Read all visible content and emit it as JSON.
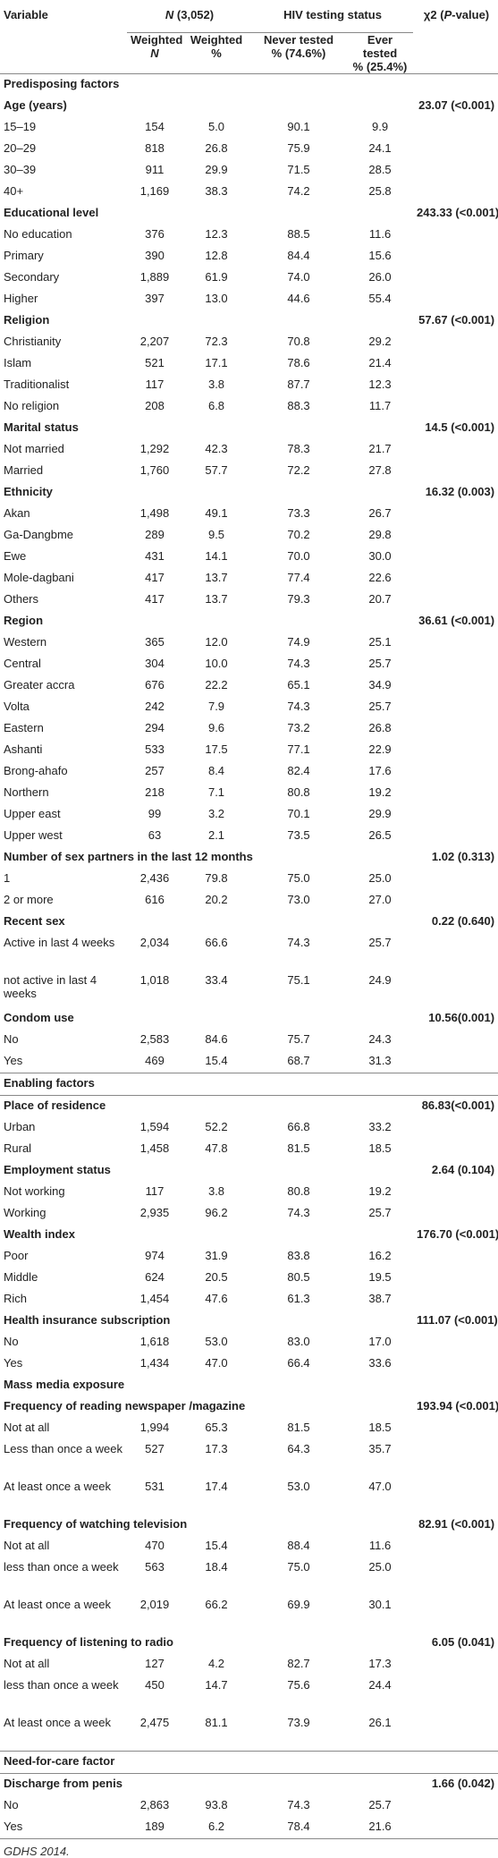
{
  "header": {
    "variable": "Variable",
    "n_label": "N",
    "n_total": " (3,052)",
    "hiv_status": "HIV testing status",
    "chi_label": "χ2 (",
    "chi_p": "P",
    "chi_tail": "-value)",
    "weighted_n_a": "Weighted",
    "weighted_n_b": "N",
    "weighted_pct_a": "Weighted",
    "weighted_pct_b": "%",
    "never_a": "Never tested",
    "never_b": "% (74.6%)",
    "ever_a": "Ever tested",
    "ever_b": "% (25.4%)"
  },
  "rows": [
    {
      "type": "sec",
      "label": "Predisposing factors"
    },
    {
      "type": "grp",
      "label": "Age (years)",
      "chi": "23.07 (<0.001)"
    },
    {
      "type": "row",
      "label": "15–19",
      "n": "154",
      "pct": "5.0",
      "never": "90.1",
      "ever": "9.9"
    },
    {
      "type": "row",
      "label": "20–29",
      "n": "818",
      "pct": "26.8",
      "never": "75.9",
      "ever": "24.1"
    },
    {
      "type": "row",
      "label": "30–39",
      "n": "911",
      "pct": "29.9",
      "never": "71.5",
      "ever": "28.5"
    },
    {
      "type": "row",
      "label": "40+",
      "n": "1,169",
      "pct": "38.3",
      "never": "74.2",
      "ever": "25.8"
    },
    {
      "type": "grp",
      "label": "Educational level",
      "chi": "243.33 (<0.001)"
    },
    {
      "type": "row",
      "label": "No education",
      "n": "376",
      "pct": "12.3",
      "never": "88.5",
      "ever": "11.6"
    },
    {
      "type": "row",
      "label": "Primary",
      "n": "390",
      "pct": "12.8",
      "never": "84.4",
      "ever": "15.6"
    },
    {
      "type": "row",
      "label": "Secondary",
      "n": "1,889",
      "pct": "61.9",
      "never": "74.0",
      "ever": "26.0"
    },
    {
      "type": "row",
      "label": "Higher",
      "n": "397",
      "pct": "13.0",
      "never": "44.6",
      "ever": "55.4"
    },
    {
      "type": "grp",
      "label": "Religion",
      "chi": "57.67 (<0.001)"
    },
    {
      "type": "row",
      "label": "Christianity",
      "n": "2,207",
      "pct": "72.3",
      "never": "70.8",
      "ever": "29.2"
    },
    {
      "type": "row",
      "label": "Islam",
      "n": "521",
      "pct": "17.1",
      "never": "78.6",
      "ever": "21.4"
    },
    {
      "type": "row",
      "label": "Traditionalist",
      "n": "117",
      "pct": "3.8",
      "never": "87.7",
      "ever": "12.3"
    },
    {
      "type": "row",
      "label": "No religion",
      "n": "208",
      "pct": "6.8",
      "never": "88.3",
      "ever": "11.7"
    },
    {
      "type": "grp",
      "label": "Marital status",
      "chi": "14.5 (<0.001)"
    },
    {
      "type": "row",
      "label": "Not married",
      "n": "1,292",
      "pct": "42.3",
      "never": "78.3",
      "ever": "21.7"
    },
    {
      "type": "row",
      "label": "Married",
      "n": "1,760",
      "pct": "57.7",
      "never": "72.2",
      "ever": "27.8"
    },
    {
      "type": "grp",
      "label": "Ethnicity",
      "chi": "16.32 (0.003)"
    },
    {
      "type": "row",
      "label": "Akan",
      "n": "1,498",
      "pct": "49.1",
      "never": "73.3",
      "ever": "26.7"
    },
    {
      "type": "row",
      "label": "Ga-Dangbme",
      "n": "289",
      "pct": "9.5",
      "never": "70.2",
      "ever": "29.8"
    },
    {
      "type": "row",
      "label": "Ewe",
      "n": "431",
      "pct": "14.1",
      "never": "70.0",
      "ever": "30.0"
    },
    {
      "type": "row",
      "label": "Mole-dagbani",
      "n": "417",
      "pct": "13.7",
      "never": "77.4",
      "ever": "22.6"
    },
    {
      "type": "row",
      "label": "Others",
      "n": "417",
      "pct": "13.7",
      "never": "79.3",
      "ever": "20.7"
    },
    {
      "type": "grp",
      "label": "Region",
      "chi": "36.61 (<0.001)"
    },
    {
      "type": "row",
      "label": "Western",
      "n": "365",
      "pct": "12.0",
      "never": "74.9",
      "ever": "25.1"
    },
    {
      "type": "row",
      "label": "Central",
      "n": "304",
      "pct": "10.0",
      "never": "74.3",
      "ever": "25.7"
    },
    {
      "type": "row",
      "label": "Greater accra",
      "n": "676",
      "pct": "22.2",
      "never": "65.1",
      "ever": "34.9"
    },
    {
      "type": "row",
      "label": "Volta",
      "n": "242",
      "pct": "7.9",
      "never": "74.3",
      "ever": "25.7"
    },
    {
      "type": "row",
      "label": "Eastern",
      "n": "294",
      "pct": "9.6",
      "never": "73.2",
      "ever": "26.8"
    },
    {
      "type": "row",
      "label": "Ashanti",
      "n": "533",
      "pct": "17.5",
      "never": "77.1",
      "ever": "22.9"
    },
    {
      "type": "row",
      "label": "Brong-ahafo",
      "n": "257",
      "pct": "8.4",
      "never": "82.4",
      "ever": "17.6"
    },
    {
      "type": "row",
      "label": "Northern",
      "n": "218",
      "pct": "7.1",
      "never": "80.8",
      "ever": "19.2"
    },
    {
      "type": "row",
      "label": "Upper east",
      "n": "99",
      "pct": "3.2",
      "never": "70.1",
      "ever": "29.9"
    },
    {
      "type": "row",
      "label": "Upper west",
      "n": "63",
      "pct": "2.1",
      "never": "73.5",
      "ever": "26.5"
    },
    {
      "type": "grp",
      "label": "Number of sex partners in the last 12 months",
      "chi": "1.02 (0.313)"
    },
    {
      "type": "row",
      "label": "1",
      "n": "2,436",
      "pct": "79.8",
      "never": "75.0",
      "ever": "25.0"
    },
    {
      "type": "row",
      "label": "2 or more",
      "n": "616",
      "pct": "20.2",
      "never": "73.0",
      "ever": "27.0"
    },
    {
      "type": "grp",
      "label": "Recent sex",
      "chi": "0.22 (0.640)"
    },
    {
      "type": "row",
      "tall": true,
      "label": "Active in last 4 weeks",
      "n": "2,034",
      "pct": "66.6",
      "never": "74.3",
      "ever": "25.7"
    },
    {
      "type": "row",
      "tall": true,
      "label": "not active in last 4 weeks",
      "n": "1,018",
      "pct": "33.4",
      "never": "75.1",
      "ever": "24.9"
    },
    {
      "type": "grp",
      "label": "Condom use",
      "chi": "10.56(0.001)"
    },
    {
      "type": "row",
      "label": "No",
      "n": "2,583",
      "pct": "84.6",
      "never": "75.7",
      "ever": "24.3"
    },
    {
      "type": "row",
      "label": "Yes",
      "n": "469",
      "pct": "15.4",
      "never": "68.7",
      "ever": "31.3"
    },
    {
      "type": "sec",
      "label": "Enabling factors",
      "border": true
    },
    {
      "type": "grp",
      "label": "Place of residence",
      "chi": "86.83(<0.001)",
      "border": true
    },
    {
      "type": "row",
      "label": "Urban",
      "n": "1,594",
      "pct": "52.2",
      "never": "66.8",
      "ever": "33.2"
    },
    {
      "type": "row",
      "label": "Rural",
      "n": "1,458",
      "pct": "47.8",
      "never": "81.5",
      "ever": "18.5"
    },
    {
      "type": "grp",
      "label": "Employment status",
      "chi": "2.64 (0.104)"
    },
    {
      "type": "row",
      "label": "Not working",
      "n": "117",
      "pct": "3.8",
      "never": "80.8",
      "ever": "19.2"
    },
    {
      "type": "row",
      "label": "Working",
      "n": "2,935",
      "pct": "96.2",
      "never": "74.3",
      "ever": "25.7"
    },
    {
      "type": "grp",
      "label": "Wealth index",
      "chi": "176.70 (<0.001)"
    },
    {
      "type": "row",
      "label": "Poor",
      "n": "974",
      "pct": "31.9",
      "never": "83.8",
      "ever": "16.2"
    },
    {
      "type": "row",
      "label": "Middle",
      "n": "624",
      "pct": "20.5",
      "never": "80.5",
      "ever": "19.5"
    },
    {
      "type": "row",
      "label": "Rich",
      "n": "1,454",
      "pct": "47.6",
      "never": "61.3",
      "ever": "38.7"
    },
    {
      "type": "grp",
      "label": "Health insurance subscription",
      "chi": "111.07 (<0.001)"
    },
    {
      "type": "row",
      "label": "No",
      "n": "1,618",
      "pct": "53.0",
      "never": "83.0",
      "ever": "17.0"
    },
    {
      "type": "row",
      "label": "Yes",
      "n": "1,434",
      "pct": "47.0",
      "never": "66.4",
      "ever": "33.6"
    },
    {
      "type": "grp",
      "label": "Mass media exposure"
    },
    {
      "type": "grp",
      "label": "Frequency of reading newspaper /magazine",
      "chi": "193.94 (<0.001)"
    },
    {
      "type": "row",
      "label": "Not at all",
      "n": "1,994",
      "pct": "65.3",
      "never": "81.5",
      "ever": "18.5"
    },
    {
      "type": "row",
      "tall": true,
      "label": "Less than once a week",
      "n": "527",
      "pct": "17.3",
      "never": "64.3",
      "ever": "35.7"
    },
    {
      "type": "row",
      "tall": true,
      "label": "At least once a week",
      "n": "531",
      "pct": "17.4",
      "never": "53.0",
      "ever": "47.0"
    },
    {
      "type": "grp",
      "label": "Frequency of watching television",
      "chi": "82.91 (<0.001)"
    },
    {
      "type": "row",
      "label": "Not at all",
      "n": "470",
      "pct": "15.4",
      "never": "88.4",
      "ever": "11.6"
    },
    {
      "type": "row",
      "tall": true,
      "label": "less than once a week",
      "n": "563",
      "pct": "18.4",
      "never": "75.0",
      "ever": "25.0"
    },
    {
      "type": "row",
      "tall": true,
      "label": "At least once a week",
      "n": "2,019",
      "pct": "66.2",
      "never": "69.9",
      "ever": "30.1"
    },
    {
      "type": "grp",
      "label": "Frequency of listening to radio",
      "chi": "6.05 (0.041)"
    },
    {
      "type": "row",
      "label": "Not at all",
      "n": "127",
      "pct": "4.2",
      "never": "82.7",
      "ever": "17.3"
    },
    {
      "type": "row",
      "tall": true,
      "label": "less than once a week",
      "n": "450",
      "pct": "14.7",
      "never": "75.6",
      "ever": "24.4"
    },
    {
      "type": "row",
      "tall": true,
      "label": "At least once a week",
      "n": "2,475",
      "pct": "81.1",
      "never": "73.9",
      "ever": "26.1"
    },
    {
      "type": "sec",
      "label": "Need-for-care factor",
      "border": true
    },
    {
      "type": "grp",
      "label": "Discharge from penis",
      "chi": "1.66 (0.042)",
      "border": true
    },
    {
      "type": "row",
      "label": "No",
      "n": "2,863",
      "pct": "93.8",
      "never": "74.3",
      "ever": "25.7"
    },
    {
      "type": "row",
      "label": "Yes",
      "n": "189",
      "pct": "6.2",
      "never": "78.4",
      "ever": "21.6"
    }
  ],
  "footnote": "GDHS 2014."
}
